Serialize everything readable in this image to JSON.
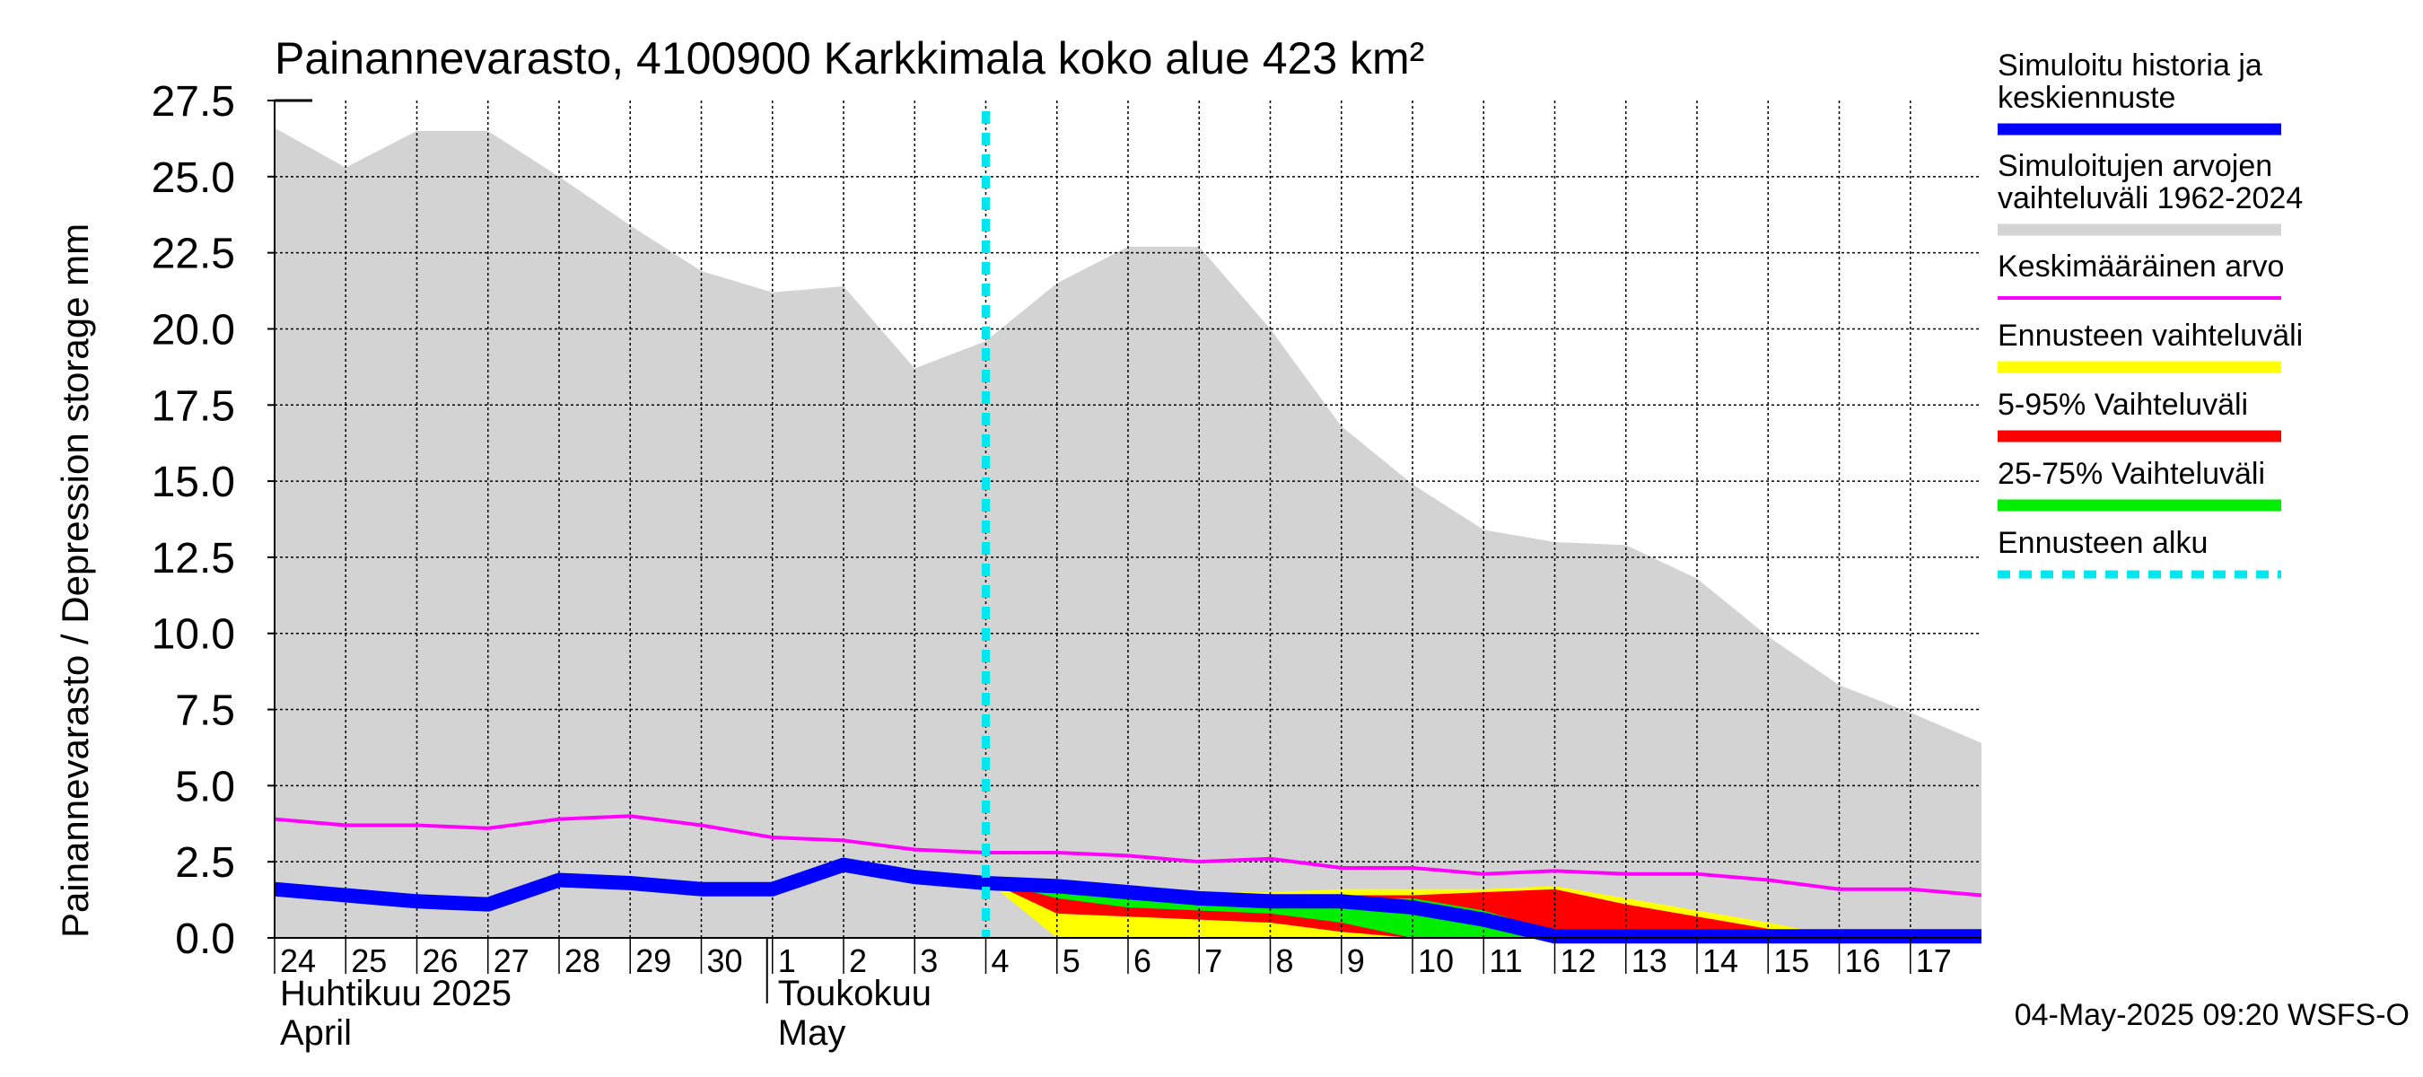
{
  "chart_data": {
    "type": "area",
    "title": "Painannevarasto, 4100900 Karkkimala koko alue 423 km²",
    "ylabel": "Painannevarasto / Depression storage    mm",
    "ylim": [
      0,
      27.5
    ],
    "yticks": [
      0.0,
      2.5,
      5.0,
      7.5,
      10.0,
      12.5,
      15.0,
      17.5,
      20.0,
      22.5,
      25.0,
      27.5
    ],
    "ytick_labels": [
      "0.0",
      "2.5",
      "5.0",
      "7.5",
      "10.0",
      "12.5",
      "15.0",
      "17.5",
      "20.0",
      "22.5",
      "25.0",
      "27.5"
    ],
    "xlim": [
      0,
      24
    ],
    "x_day_labels": [
      "24",
      "25",
      "26",
      "27",
      "28",
      "29",
      "30",
      "1",
      "2",
      "3",
      "4",
      "5",
      "6",
      "7",
      "8",
      "9",
      "10",
      "11",
      "12",
      "13",
      "14",
      "15",
      "16",
      "17"
    ],
    "month_labels": [
      {
        "fi": "Huhtikuu  2025",
        "en": "April",
        "start_day": 0
      },
      {
        "fi": "Toukokuu",
        "en": "May",
        "start_day": 7
      }
    ],
    "forecast_start_day": 10,
    "series": [
      {
        "name": "Simuloitujen arvojen vaihteluväli 1962-2024",
        "kind": "band",
        "color": "#d3d3d3",
        "x": [
          0,
          1,
          2,
          3,
          4,
          5,
          6,
          7,
          8,
          9,
          10,
          11,
          12,
          13,
          14,
          15,
          16,
          17,
          18,
          19,
          20,
          21,
          22,
          23,
          24
        ],
        "upper": [
          26.6,
          25.3,
          26.5,
          26.5,
          25.0,
          23.4,
          21.9,
          21.2,
          21.4,
          18.7,
          19.6,
          21.5,
          22.7,
          22.7,
          20.0,
          16.8,
          14.9,
          13.4,
          13.0,
          12.9,
          11.8,
          9.9,
          8.3,
          7.4,
          6.4
        ],
        "lower": [
          0,
          0,
          0,
          0,
          0,
          0,
          0,
          0,
          0,
          0,
          0,
          0,
          0,
          0,
          0,
          0,
          0,
          0,
          0,
          0,
          0,
          0,
          0,
          0,
          0
        ]
      },
      {
        "name": "Ennusteen vaihteluväli",
        "kind": "band",
        "color": "#ffff00",
        "x": [
          10,
          11,
          12,
          13,
          14,
          15,
          16,
          17,
          18,
          19,
          20,
          21,
          22,
          23,
          24
        ],
        "upper": [
          1.9,
          1.8,
          1.6,
          1.5,
          1.5,
          1.6,
          1.6,
          1.6,
          1.7,
          1.3,
          0.9,
          0.5,
          0.05,
          0.05,
          0.05
        ],
        "lower": [
          1.9,
          0.0,
          0.0,
          0.0,
          0.0,
          0.0,
          0.0,
          0.0,
          0.0,
          0.0,
          0.0,
          0.0,
          0.0,
          0.0,
          0.0
        ]
      },
      {
        "name": "5-95% Vaihteluväli",
        "kind": "band",
        "color": "#ff0000",
        "x": [
          10,
          11,
          12,
          13,
          14,
          15,
          16,
          17,
          18,
          19,
          20,
          21,
          22,
          23,
          24
        ],
        "upper": [
          1.9,
          1.7,
          1.5,
          1.4,
          1.4,
          1.4,
          1.4,
          1.5,
          1.6,
          1.1,
          0.7,
          0.3,
          0.0,
          0.0,
          0.0
        ],
        "lower": [
          1.9,
          0.8,
          0.7,
          0.6,
          0.5,
          0.2,
          0.0,
          0.0,
          0.0,
          0.0,
          0.0,
          0.0,
          0.0,
          0.0,
          0.0
        ]
      },
      {
        "name": "25-75% Vaihteluväli",
        "kind": "band",
        "color": "#00ee00",
        "x": [
          10,
          11,
          12,
          13,
          14,
          15,
          16,
          17,
          18,
          19,
          20,
          21,
          22,
          23,
          24
        ],
        "upper": [
          1.9,
          1.6,
          1.4,
          1.3,
          1.2,
          1.3,
          1.3,
          0.9,
          0.2,
          0.0,
          0.0,
          0.0,
          0.0,
          0.0,
          0.0
        ],
        "lower": [
          1.9,
          1.3,
          1.0,
          0.9,
          0.8,
          0.5,
          0.0,
          0.0,
          0.0,
          0.0,
          0.0,
          0.0,
          0.0,
          0.0,
          0.0
        ]
      },
      {
        "name": "Keskimääräinen arvo",
        "kind": "line",
        "color": "#ff00ff",
        "x": [
          0,
          1,
          2,
          3,
          4,
          5,
          6,
          7,
          8,
          9,
          10,
          11,
          12,
          13,
          14,
          15,
          16,
          17,
          18,
          19,
          20,
          21,
          22,
          23,
          24
        ],
        "values": [
          3.9,
          3.7,
          3.7,
          3.6,
          3.9,
          4.0,
          3.7,
          3.3,
          3.2,
          2.9,
          2.8,
          2.8,
          2.7,
          2.5,
          2.6,
          2.3,
          2.3,
          2.1,
          2.2,
          2.1,
          2.1,
          1.9,
          1.6,
          1.6,
          1.4
        ]
      },
      {
        "name": "Simuloitu historia ja keskiennuste",
        "kind": "line",
        "color": "#0000ff",
        "x": [
          0,
          1,
          2,
          3,
          4,
          5,
          6,
          7,
          8,
          9,
          10,
          11,
          12,
          13,
          14,
          15,
          16,
          17,
          18,
          19,
          20,
          21,
          22,
          23,
          24
        ],
        "values": [
          1.6,
          1.4,
          1.2,
          1.1,
          1.9,
          1.8,
          1.6,
          1.6,
          2.4,
          2.0,
          1.8,
          1.7,
          1.5,
          1.3,
          1.2,
          1.2,
          1.0,
          0.6,
          0.05,
          0.05,
          0.05,
          0.05,
          0.05,
          0.05,
          0.05
        ]
      }
    ],
    "legend": {
      "position": "right",
      "items": [
        {
          "lines": [
            "Simuloitu historia ja",
            "keskiennuste"
          ],
          "color": "#0000ff",
          "style": "solid-thick"
        },
        {
          "lines": [
            "Simuloitujen arvojen",
            "vaihteluväli 1962-2024"
          ],
          "color": "#d3d3d3",
          "style": "solid-thick"
        },
        {
          "lines": [
            "Keskimääräinen arvo"
          ],
          "color": "#ff00ff",
          "style": "solid-thin"
        },
        {
          "lines": [
            "Ennusteen vaihteluväli"
          ],
          "color": "#ffff00",
          "style": "solid-thick"
        },
        {
          "lines": [
            "5-95% Vaihteluväli"
          ],
          "color": "#ff0000",
          "style": "solid-thick"
        },
        {
          "lines": [
            "25-75% Vaihteluväli"
          ],
          "color": "#00ee00",
          "style": "solid-thick"
        },
        {
          "lines": [
            "Ennusteen alku"
          ],
          "color": "#00e5ee",
          "style": "dashed"
        }
      ]
    },
    "footer": "04-May-2025 09:20 WSFS-O"
  }
}
